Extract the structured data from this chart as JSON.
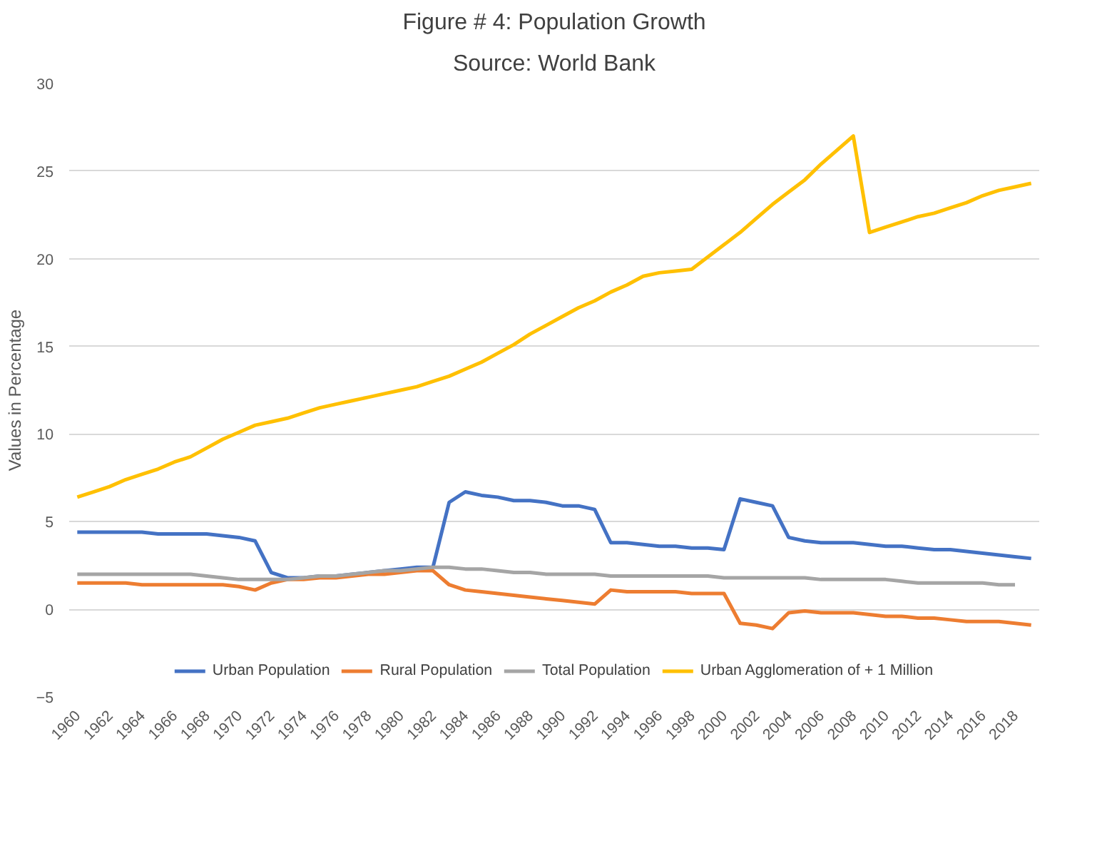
{
  "chart_data": {
    "type": "line",
    "title": "Figure # 4: Population Growth",
    "subtitle": "Source: World Bank",
    "ylabel": "Values in Percentage",
    "categories": [
      "1960",
      null,
      "1962",
      null,
      "1964",
      null,
      "1966",
      null,
      "1968",
      null,
      "1970",
      null,
      "1972",
      null,
      "1974",
      null,
      "1976",
      null,
      "1978",
      null,
      "1980",
      null,
      "1982",
      null,
      "1984",
      null,
      "1986",
      null,
      "1988",
      null,
      "1990",
      null,
      "1992",
      null,
      "1994",
      null,
      "1996",
      null,
      "1998",
      null,
      "2000",
      null,
      "2002",
      null,
      "2004",
      null,
      "2006",
      null,
      "2008",
      null,
      "2010",
      null,
      "2012",
      null,
      "2014",
      null,
      "2016",
      null,
      "2018",
      null
    ],
    "series": [
      {
        "name": "Urban Population",
        "color": "#4472c4",
        "values": [
          4.4,
          4.4,
          4.4,
          4.4,
          4.4,
          4.3,
          4.3,
          4.3,
          4.3,
          4.2,
          4.1,
          3.9,
          2.1,
          1.8,
          1.8,
          1.9,
          1.9,
          2.0,
          2.1,
          2.2,
          2.3,
          2.4,
          2.4,
          6.1,
          6.7,
          6.5,
          6.4,
          6.2,
          6.2,
          6.1,
          5.9,
          5.9,
          5.7,
          3.8,
          3.8,
          3.7,
          3.6,
          3.6,
          3.5,
          3.5,
          3.4,
          6.3,
          6.1,
          5.9,
          4.1,
          3.9,
          3.8,
          3.8,
          3.8,
          3.7,
          3.6,
          3.6,
          3.5,
          3.4,
          3.4,
          3.3,
          3.2,
          3.1,
          3.0,
          2.9
        ]
      },
      {
        "name": "Rural Population",
        "color": "#ed7d31",
        "values": [
          1.5,
          1.5,
          1.5,
          1.5,
          1.4,
          1.4,
          1.4,
          1.4,
          1.4,
          1.4,
          1.3,
          1.1,
          1.5,
          1.7,
          1.7,
          1.8,
          1.8,
          1.9,
          2.0,
          2.0,
          2.1,
          2.2,
          2.2,
          1.4,
          1.1,
          1.0,
          0.9,
          0.8,
          0.7,
          0.6,
          0.5,
          0.4,
          0.3,
          1.1,
          1.0,
          1.0,
          1.0,
          1.0,
          0.9,
          0.9,
          0.9,
          -0.8,
          -0.9,
          -1.1,
          -0.2,
          -0.1,
          -0.2,
          -0.2,
          -0.2,
          -0.3,
          -0.4,
          -0.4,
          -0.5,
          -0.5,
          -0.6,
          -0.7,
          -0.7,
          -0.7,
          -0.8,
          -0.9
        ]
      },
      {
        "name": "Total Population",
        "color": "#a5a5a5",
        "values": [
          2.0,
          2.0,
          2.0,
          2.0,
          2.0,
          2.0,
          2.0,
          2.0,
          1.9,
          1.8,
          1.7,
          1.7,
          1.7,
          1.7,
          1.8,
          1.9,
          1.9,
          2.0,
          2.1,
          2.2,
          2.2,
          2.3,
          2.4,
          2.4,
          2.3,
          2.3,
          2.2,
          2.1,
          2.1,
          2.0,
          2.0,
          2.0,
          2.0,
          1.9,
          1.9,
          1.9,
          1.9,
          1.9,
          1.9,
          1.9,
          1.8,
          1.8,
          1.8,
          1.8,
          1.8,
          1.8,
          1.7,
          1.7,
          1.7,
          1.7,
          1.7,
          1.6,
          1.5,
          1.5,
          1.5,
          1.5,
          1.5,
          1.4,
          1.4,
          null
        ]
      },
      {
        "name": "Urban Agglomeration of + 1 Million",
        "color": "#ffc000",
        "values": [
          6.4,
          6.7,
          7.0,
          7.4,
          7.7,
          8.0,
          8.4,
          8.7,
          9.2,
          9.7,
          10.1,
          10.5,
          10.7,
          10.9,
          11.2,
          11.5,
          11.7,
          11.9,
          12.1,
          12.3,
          12.5,
          12.7,
          13.0,
          13.3,
          13.7,
          14.1,
          14.6,
          15.1,
          15.7,
          16.2,
          16.7,
          17.2,
          17.6,
          18.1,
          18.5,
          19.0,
          19.2,
          19.3,
          19.4,
          20.1,
          20.8,
          21.5,
          22.3,
          23.1,
          23.8,
          24.5,
          25.4,
          26.2,
          27.0,
          21.5,
          21.8,
          22.1,
          22.4,
          22.6,
          22.9,
          23.2,
          23.6,
          23.9,
          24.1,
          24.3
        ]
      }
    ],
    "ylim": [
      -5,
      30
    ],
    "yticks": [
      -5,
      0,
      5,
      10,
      15,
      20,
      25,
      30
    ],
    "grid": "y",
    "legend": "bottom"
  }
}
